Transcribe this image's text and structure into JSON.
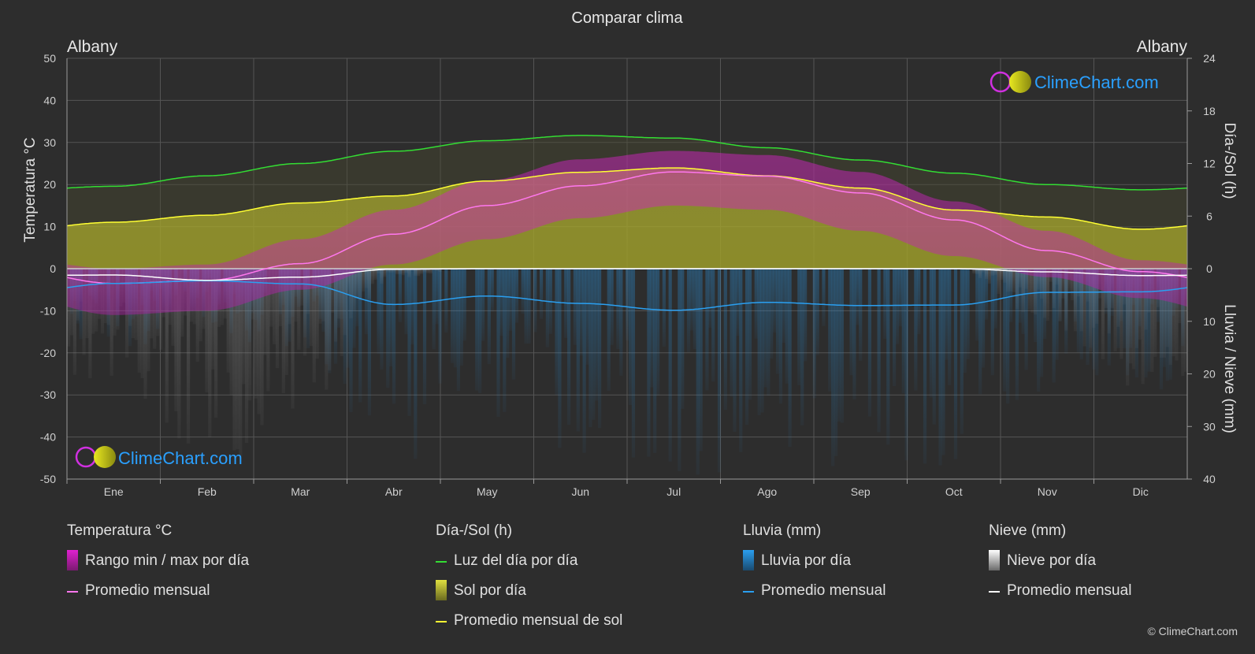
{
  "title": "Comparar clima",
  "city_left": "Albany",
  "city_right": "Albany",
  "axis": {
    "left_label": "Temperatura °C",
    "right_top_label": "Día-/Sol (h)",
    "right_bottom_label": "Lluvia / Nieve (mm)"
  },
  "brand": {
    "name": "ClimeChart.com",
    "copyright": "© ClimeChart.com"
  },
  "colors": {
    "background": "#2d2d2d",
    "grid": "#5a5a5a",
    "temp_range": "#e020d0",
    "temp_avg": "#ff77ee",
    "daylight": "#33dd33",
    "sun_fill": "#c8c832",
    "sun_avg": "#ffff33",
    "rain": "#2a8fd8",
    "rain_avg": "#2a9ff0",
    "snow": "#bbbbbb",
    "snow_avg": "#ffffff",
    "brand_blue": "#2aa0ff"
  },
  "legend": {
    "temperature": {
      "title": "Temperatura °C",
      "range": "Rango min / max por día",
      "avg": "Promedio mensual"
    },
    "sun": {
      "title": "Día-/Sol (h)",
      "daylight": "Luz del día por día",
      "sun": "Sol por día",
      "sun_avg": "Promedio mensual de sol"
    },
    "rain": {
      "title": "Lluvia (mm)",
      "rain": "Lluvia por día",
      "avg": "Promedio mensual"
    },
    "snow": {
      "title": "Nieve (mm)",
      "snow": "Nieve por día",
      "avg": "Promedio mensual"
    }
  },
  "chart_data": {
    "type": "area",
    "categories": [
      "Ene",
      "Feb",
      "Mar",
      "Abr",
      "May",
      "Jun",
      "Jul",
      "Ago",
      "Sep",
      "Oct",
      "Nov",
      "Dic"
    ],
    "y_left": {
      "label": "Temperatura °C",
      "range": [
        -50,
        50
      ],
      "ticks": [
        50,
        40,
        30,
        20,
        10,
        0,
        -10,
        -20,
        -30,
        -40,
        -50
      ]
    },
    "y_right_top": {
      "label": "Día-/Sol (h)",
      "range": [
        0,
        24
      ],
      "ticks": [
        24,
        18,
        12,
        6,
        0
      ]
    },
    "y_right_bottom": {
      "label": "Lluvia / Nieve (mm)",
      "range": [
        0,
        40
      ],
      "ticks": [
        0,
        10,
        20,
        30,
        40
      ]
    },
    "grid": true,
    "series": [
      {
        "name": "Rango min / max por día",
        "type": "band",
        "unit": "°C",
        "min": [
          -11,
          -10,
          -5,
          1,
          7,
          12,
          15,
          14,
          9,
          3,
          -2,
          -7
        ],
        "max": [
          0,
          1,
          7,
          14,
          21,
          26,
          28,
          27,
          23,
          16,
          9,
          2
        ]
      },
      {
        "name": "Promedio mensual",
        "kind": "temperature",
        "unit": "°C",
        "values": [
          -3.5,
          -2.8,
          1.2,
          8.2,
          15,
          19.7,
          23,
          22,
          18,
          11.6,
          4.3,
          -0.7
        ]
      },
      {
        "name": "Luz del día por día",
        "unit": "h",
        "values": [
          9.4,
          10.6,
          12.0,
          13.4,
          14.6,
          15.2,
          14.9,
          13.8,
          12.4,
          10.9,
          9.6,
          9.0
        ]
      },
      {
        "name": "Sol por día",
        "type": "area",
        "unit": "h",
        "values": [
          5.3,
          6.1,
          7.5,
          8.3,
          10.0,
          11.0,
          11.5,
          10.6,
          9.2,
          6.7,
          5.9,
          4.5
        ]
      },
      {
        "name": "Promedio mensual de sol",
        "unit": "h",
        "values": [
          5.3,
          6.1,
          7.5,
          8.3,
          10.0,
          11.0,
          11.5,
          10.6,
          9.2,
          6.7,
          5.9,
          4.5
        ]
      },
      {
        "name": "Promedio mensual",
        "kind": "rain",
        "unit": "mm",
        "values": [
          2.8,
          2.3,
          2.9,
          6.8,
          5.2,
          6.6,
          7.9,
          6.4,
          7.0,
          6.9,
          4.5,
          4.4
        ]
      },
      {
        "name": "Promedio mensual",
        "kind": "snow",
        "unit": "mm",
        "values": [
          1.2,
          2.2,
          1.6,
          0.1,
          0.0,
          0.0,
          0.0,
          0.0,
          0.0,
          0.0,
          0.6,
          1.3
        ]
      }
    ]
  }
}
